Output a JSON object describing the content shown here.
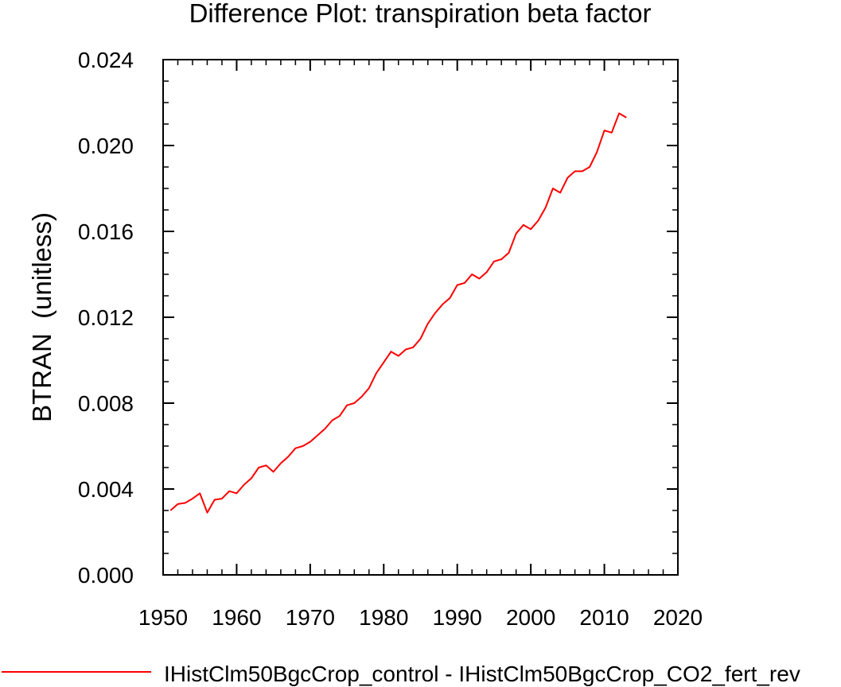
{
  "chart_data": {
    "type": "line",
    "title": "Difference Plot: transpiration beta factor",
    "ylabel": "BTRAN  (unitless)",
    "xlabel": "",
    "xlim": [
      1950,
      2020
    ],
    "ylim": [
      0.0,
      0.024
    ],
    "x_ticks": [
      1950,
      1960,
      1970,
      1980,
      1990,
      2000,
      2010,
      2020
    ],
    "y_ticks": [
      0.0,
      0.004,
      0.008,
      0.012,
      0.016,
      0.02,
      0.024
    ],
    "x_tick_labels": [
      "1950",
      "1960",
      "1970",
      "1980",
      "1990",
      "2000",
      "2010",
      "2020"
    ],
    "y_tick_labels": [
      "0.000",
      "0.004",
      "0.008",
      "0.012",
      "0.016",
      "0.020",
      "0.024"
    ],
    "grid": false,
    "legend_position": "bottom",
    "series": [
      {
        "name": "IHistClm50BgcCrop_control - IHistClm50BgcCrop_CO2_fert_rev",
        "color": "#ff0000",
        "x": [
          1951,
          1952,
          1953,
          1954,
          1955,
          1956,
          1957,
          1958,
          1959,
          1960,
          1961,
          1962,
          1963,
          1964,
          1965,
          1966,
          1967,
          1968,
          1969,
          1970,
          1971,
          1972,
          1973,
          1974,
          1975,
          1976,
          1977,
          1978,
          1979,
          1980,
          1981,
          1982,
          1983,
          1984,
          1985,
          1986,
          1987,
          1988,
          1989,
          1990,
          1991,
          1992,
          1993,
          1994,
          1995,
          1996,
          1997,
          1998,
          1999,
          2000,
          2001,
          2002,
          2003,
          2004,
          2005,
          2006,
          2007,
          2008,
          2009,
          2010,
          2011,
          2012,
          2013
        ],
        "y": [
          0.003,
          0.0033,
          0.00335,
          0.00355,
          0.0038,
          0.0029,
          0.0035,
          0.00355,
          0.0039,
          0.0038,
          0.0042,
          0.0045,
          0.005,
          0.0051,
          0.0048,
          0.0052,
          0.0055,
          0.0059,
          0.006,
          0.0062,
          0.0065,
          0.0068,
          0.0072,
          0.0074,
          0.0079,
          0.008,
          0.0083,
          0.0087,
          0.0094,
          0.0099,
          0.0104,
          0.0102,
          0.0105,
          0.0106,
          0.011,
          0.0117,
          0.0122,
          0.0126,
          0.0129,
          0.0135,
          0.0136,
          0.014,
          0.0138,
          0.0141,
          0.0146,
          0.0147,
          0.015,
          0.0159,
          0.0163,
          0.0161,
          0.0165,
          0.0171,
          0.018,
          0.0178,
          0.0185,
          0.0188,
          0.0188,
          0.019,
          0.0197,
          0.0207,
          0.0206,
          0.0215,
          0.0213
        ]
      }
    ]
  }
}
